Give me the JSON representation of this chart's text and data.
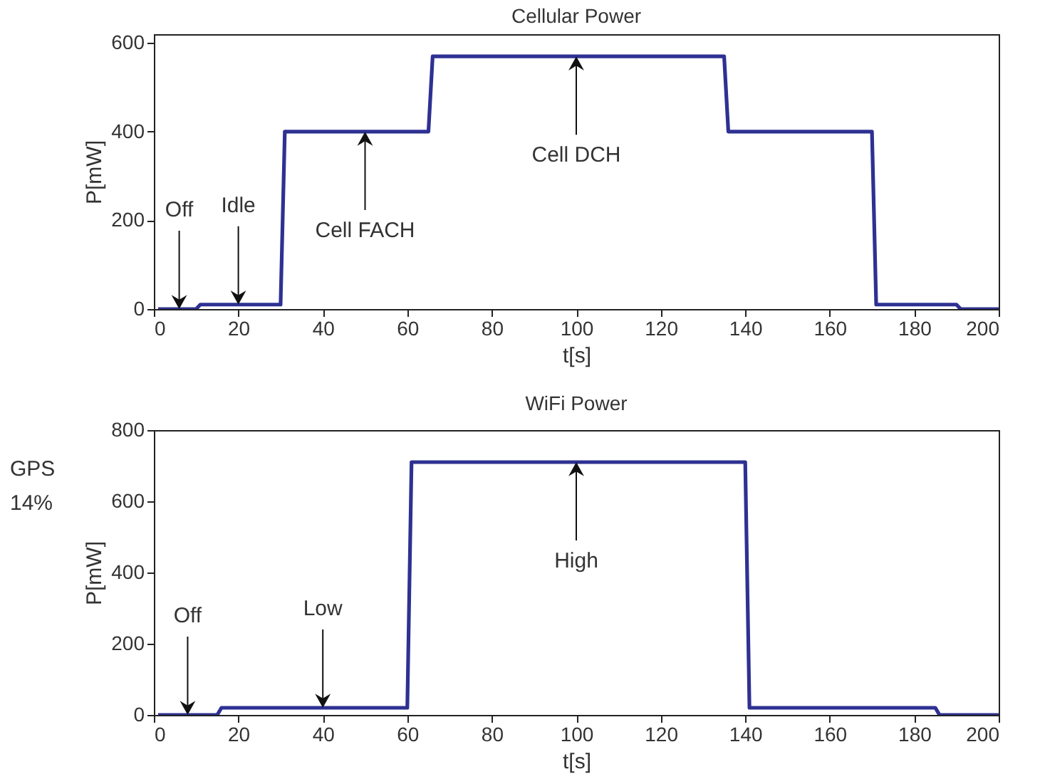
{
  "chart_data": [
    {
      "type": "line",
      "title": "Cellular Power",
      "xlabel": "t[s]",
      "ylabel": "P[mW]",
      "x": [
        1,
        10,
        11,
        30,
        31,
        65,
        66,
        135,
        136,
        170,
        171,
        190,
        191,
        200
      ],
      "series": [
        {
          "color": "#2e3192",
          "values": [
            0,
            0,
            10,
            10,
            400,
            400,
            570,
            570,
            400,
            400,
            10,
            10,
            0,
            0
          ]
        }
      ],
      "xlim": [
        0,
        200
      ],
      "xticks": [
        0,
        20,
        40,
        60,
        80,
        100,
        120,
        140,
        160,
        180,
        200
      ],
      "ylim": [
        0,
        620
      ],
      "yticks": [
        0,
        200,
        400,
        600
      ],
      "grid": false,
      "annotations": [
        {
          "text": "Off",
          "x": 6,
          "y": 0
        },
        {
          "text": "Idle",
          "x": 20,
          "y": 10
        },
        {
          "text": "Cell FACH",
          "x": 50,
          "y": 400
        },
        {
          "text": "Cell DCH",
          "x": 100,
          "y": 570
        }
      ]
    },
    {
      "type": "line",
      "title": "WiFi Power",
      "xlabel": "t[s]",
      "ylabel": "P[mW]",
      "x": [
        1,
        15,
        16,
        60,
        61,
        140,
        141,
        185,
        186,
        200
      ],
      "series": [
        {
          "color": "#2e3192",
          "values": [
            0,
            0,
            20,
            20,
            710,
            710,
            20,
            20,
            0,
            0
          ]
        }
      ],
      "xlim": [
        0,
        200
      ],
      "xticks": [
        0,
        20,
        40,
        60,
        80,
        100,
        120,
        140,
        160,
        180,
        200
      ],
      "ylim": [
        0,
        800
      ],
      "yticks": [
        0,
        200,
        400,
        600,
        800
      ],
      "grid": false,
      "annotations": [
        "GPS 14%",
        {
          "text": "Off",
          "x": 8,
          "y": 0
        },
        {
          "text": "Low",
          "x": 40,
          "y": 20
        },
        {
          "text": "High",
          "x": 100,
          "y": 710
        }
      ]
    }
  ]
}
